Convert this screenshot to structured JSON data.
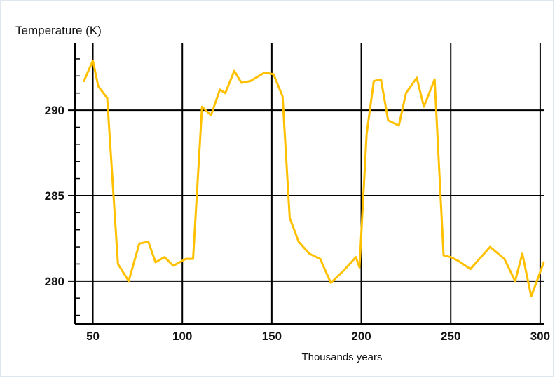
{
  "chart_data": {
    "type": "line",
    "title": "",
    "ylabel": "Temperature (K)",
    "xlabel": "Thousands years",
    "xlim": [
      40,
      302
    ],
    "ylim": [
      277.9,
      293.9
    ],
    "x_ticks": [
      50,
      100,
      150,
      200,
      250,
      300
    ],
    "y_ticks": [
      280,
      285,
      290
    ],
    "grid": "on",
    "line_color": "#FFC000",
    "series": [
      {
        "x": [
          45,
          50,
          53,
          58,
          64,
          70,
          76,
          81,
          85,
          90,
          95,
          102,
          106,
          111,
          116,
          121,
          124,
          129,
          133,
          138,
          146,
          151,
          156,
          160,
          165,
          171,
          177,
          183,
          190,
          197,
          199,
          203,
          207,
          211,
          215,
          221,
          225,
          231,
          235,
          241,
          246,
          250,
          254,
          261,
          266,
          272,
          280,
          286,
          290,
          295,
          302
        ],
        "y": [
          291.7,
          292.9,
          291.4,
          290.7,
          281.0,
          280.0,
          282.2,
          282.3,
          281.1,
          281.4,
          280.9,
          281.3,
          281.3,
          290.2,
          289.7,
          291.2,
          291.0,
          292.3,
          291.6,
          291.7,
          292.2,
          292.1,
          290.8,
          283.7,
          282.3,
          281.6,
          281.3,
          279.9,
          280.6,
          281.4,
          280.8,
          288.6,
          291.7,
          291.8,
          289.4,
          289.1,
          291.0,
          291.9,
          290.2,
          291.8,
          281.5,
          281.4,
          281.2,
          280.7,
          281.3,
          282.0,
          281.3,
          280.0,
          281.6,
          279.1,
          281.1
        ]
      }
    ]
  }
}
